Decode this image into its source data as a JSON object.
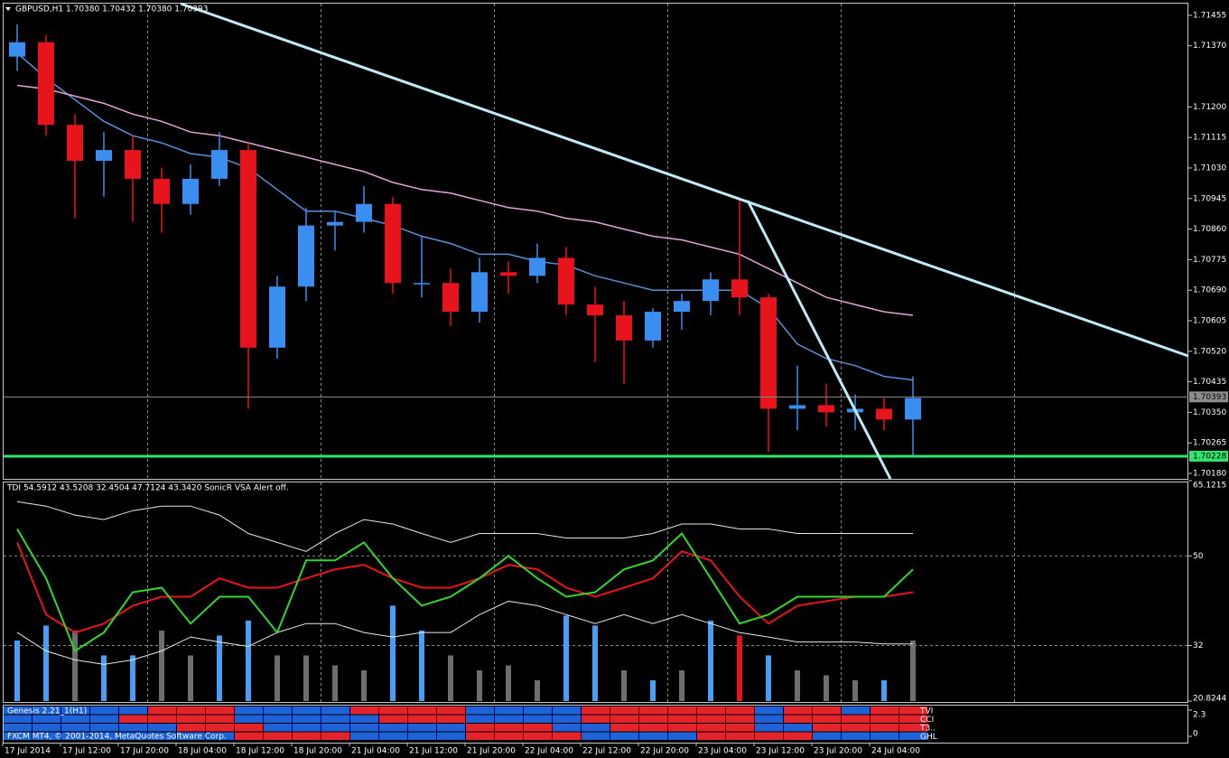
{
  "chart_data": [
    {
      "type": "candlestick",
      "title": "GBPUSD,H1  1.70380 1.70432 1.70380 1.70393",
      "categories": [
        "17 Jul 2014",
        null,
        "17 Jul 12:00",
        null,
        "17 Jul 20:00",
        null,
        "18 Jul 04:00",
        null,
        "18 Jul 12:00",
        null,
        "18 Jul 20:00",
        null,
        "21 Jul 04:00",
        null,
        "21 Jul 12:00",
        null,
        "21 Jul 20:00",
        null,
        "22 Jul 04:00",
        null,
        "22 Jul 12:00",
        null,
        "22 Jul 20:00",
        null,
        "23 Jul 04:00",
        null,
        "23 Jul 12:00",
        null,
        "23 Jul 20:00",
        null,
        "24 Jul 04:00",
        null
      ],
      "open": [
        1.7134,
        1.7138,
        1.7115,
        1.7105,
        1.7108,
        1.71,
        1.7093,
        1.71,
        1.7108,
        1.7053,
        1.707,
        1.7087,
        1.7088,
        1.7093,
        1.7071,
        1.7071,
        1.7063,
        1.7074,
        1.7073,
        1.7078,
        1.7065,
        1.7062,
        1.7055,
        1.7063,
        1.7066,
        1.7072,
        1.7067,
        1.7036,
        1.7037,
        1.7035,
        1.7036,
        1.7033
      ],
      "high": [
        1.7143,
        1.714,
        1.7118,
        1.7113,
        1.7112,
        1.7103,
        1.7104,
        1.7113,
        1.711,
        1.7073,
        1.7092,
        1.7091,
        1.7098,
        1.7095,
        1.7084,
        1.7075,
        1.7078,
        1.7077,
        1.7082,
        1.7081,
        1.707,
        1.7066,
        1.7064,
        1.7068,
        1.7074,
        1.7094,
        1.7068,
        1.7048,
        1.7043,
        1.704,
        1.7039,
        1.7045
      ],
      "low": [
        1.713,
        1.7112,
        1.7089,
        1.7095,
        1.7088,
        1.7085,
        1.709,
        1.7098,
        1.7036,
        1.705,
        1.7066,
        1.708,
        1.7085,
        1.7068,
        1.7067,
        1.7059,
        1.706,
        1.7068,
        1.7071,
        1.7062,
        1.7049,
        1.7043,
        1.7053,
        1.7058,
        1.7062,
        1.7062,
        1.7024,
        1.703,
        1.7031,
        1.703,
        1.703,
        1.7023
      ],
      "close": [
        1.7138,
        1.7115,
        1.7105,
        1.7108,
        1.71,
        1.7093,
        1.71,
        1.7108,
        1.7053,
        1.707,
        1.7087,
        1.7088,
        1.7093,
        1.7071,
        1.7071,
        1.7063,
        1.7074,
        1.7073,
        1.7078,
        1.7065,
        1.7062,
        1.7055,
        1.7063,
        1.7066,
        1.7072,
        1.7067,
        1.7036,
        1.7037,
        1.7035,
        1.7036,
        1.7033,
        1.7039
      ],
      "up_color": "#3a8ef0",
      "down_color": "#e8141b",
      "series": [
        {
          "color": "#5b8fd6",
          "values": [
            1.7135,
            1.7128,
            1.7122,
            1.7116,
            1.7112,
            1.711,
            1.7107,
            1.7106,
            1.7103,
            1.7097,
            1.7091,
            1.7091,
            1.7089,
            1.7087,
            1.7084,
            1.7082,
            1.7079,
            1.7079,
            1.7077,
            1.7076,
            1.7073,
            1.7071,
            1.7069,
            1.7069,
            1.7069,
            1.7069,
            1.7064,
            1.7054,
            1.705,
            1.7048,
            1.7045,
            1.7044
          ]
        },
        {
          "color": "#e6a3d6",
          "values": [
            1.7126,
            1.7125,
            1.7123,
            1.7121,
            1.7118,
            1.7116,
            1.7113,
            1.7112,
            1.711,
            1.7108,
            1.7106,
            1.7104,
            1.7102,
            1.7099,
            1.7097,
            1.7096,
            1.7094,
            1.7092,
            1.7091,
            1.7089,
            1.7088,
            1.7086,
            1.7084,
            1.7083,
            1.7081,
            1.7079,
            1.7075,
            1.7071,
            1.7067,
            1.7065,
            1.7063,
            1.7062
          ]
        }
      ],
      "hlines": [
        {
          "value": 1.70393,
          "color": "#8c8c8c"
        },
        {
          "value": 1.70228,
          "color": "#2ee66b"
        }
      ],
      "ylim": [
        1.70165,
        1.7149
      ],
      "yticks": [
        1.71455,
        {
          "value": 1.7137,
          "label": "1.71370"
        },
        {
          "value": 1.712,
          "label": "1.71200"
        },
        1.71115,
        {
          "value": 1.7103,
          "label": "1.71030"
        },
        1.70945,
        {
          "value": 1.7086,
          "label": "1.70860"
        },
        1.70775,
        {
          "value": 1.7069,
          "label": "1.70690"
        },
        1.70605,
        {
          "value": 1.7052,
          "label": "1.70520"
        },
        1.70435,
        {
          "value": 1.7035,
          "label": "1.70350"
        },
        1.70265,
        {
          "value": 1.7018,
          "label": "1.70180"
        }
      ]
    },
    {
      "type": "line",
      "title": "TDI 54.5912 43.5208 32.4504 47.7124 43.3420  SonicR VSA   Alert off.",
      "series": [
        {
          "color": "#e8e8e8",
          "values": [
            60.9,
            60.0,
            58.2,
            57.3,
            59.1,
            60.0,
            60.0,
            58.2,
            54.5,
            52.7,
            50.9,
            54.5,
            57.3,
            56.4,
            54.5,
            52.7,
            54.5,
            54.5,
            54.5,
            53.6,
            53.6,
            53.6,
            54.5,
            56.4,
            56.4,
            55.4,
            55.4,
            54.5,
            54.5,
            54.5,
            54.5,
            54.5
          ]
        },
        {
          "color": "#e8e8e8",
          "values": [
            34.6,
            30.9,
            29.1,
            28.2,
            29.1,
            30.9,
            33.7,
            32.7,
            31.8,
            34.6,
            36.4,
            36.4,
            34.6,
            33.7,
            34.6,
            34.6,
            38.2,
            40.9,
            40.0,
            38.2,
            36.4,
            38.2,
            36.4,
            38.2,
            36.4,
            34.6,
            33.7,
            32.7,
            32.7,
            32.7,
            32.3,
            32.3
          ]
        },
        {
          "color": "#e8141b",
          "values": [
            52.7,
            38.2,
            34.6,
            36.4,
            40.0,
            41.8,
            41.8,
            45.5,
            43.6,
            43.6,
            45.5,
            47.3,
            48.2,
            45.5,
            43.6,
            43.6,
            45.5,
            48.2,
            47.3,
            43.6,
            41.8,
            43.6,
            45.5,
            50.9,
            49.1,
            41.8,
            36.4,
            40.0,
            40.9,
            41.8,
            41.8,
            42.7
          ]
        },
        {
          "color": "#2fd82f",
          "values": [
            55.4,
            45.5,
            30.9,
            34.6,
            42.7,
            43.6,
            36.4,
            41.8,
            41.8,
            34.6,
            49.1,
            49.1,
            52.7,
            45.5,
            40.0,
            41.8,
            45.5,
            50.0,
            45.5,
            41.8,
            42.7,
            47.3,
            49.1,
            54.5,
            45.5,
            36.4,
            38.2,
            41.8,
            41.8,
            41.8,
            41.8,
            47.3
          ]
        }
      ],
      "histogram": {
        "values": [
          33,
          36,
          35,
          30,
          30,
          35,
          30,
          34,
          37,
          30,
          30,
          28,
          27,
          40,
          35,
          30,
          27,
          28,
          25,
          38,
          36,
          27,
          25,
          27,
          37,
          34,
          30,
          27,
          26,
          25,
          25,
          33
        ],
        "colors": "bbgbbggbbggggbbggggbbgbgbrbgggbg",
        "palette": {
          "g": "#6e6e6e",
          "b": "#4a9ff5",
          "r": "#e8141b"
        }
      },
      "ylim": [
        20.8244,
        65.1215
      ],
      "yticks": [
        65.1215,
        50,
        32,
        20.8244
      ]
    },
    {
      "type": "heatmap",
      "title": "Genesis 2.21_1(H1)",
      "rows": [
        {
          "name": "TVI",
          "cells": "bbbbbrrrbbbbrrrrbbbbrrrrrrbrrbrr"
        },
        {
          "name": "CCI",
          "cells": "bbbbrrrrbbbbbrrrbbbbrrrrrrbrrrrr"
        },
        {
          "name": "T3..",
          "cells": "bbbbbbrrrbbbbbbbrrrbbrrrrrbbrrrr"
        },
        {
          "name": "GHL",
          "cells": "bbbbbbbbrrrrbbbbrrrrbbbbrrrrbbbb"
        }
      ],
      "palette": {
        "b": "#1f62d8",
        "r": "#e3242b"
      },
      "ylim": [
        0,
        2.3
      ],
      "yticks": [
        2.3,
        0
      ]
    }
  ],
  "footer": "FXCM MT4, © 2001-2014, MetaQuotes Software Corp."
}
